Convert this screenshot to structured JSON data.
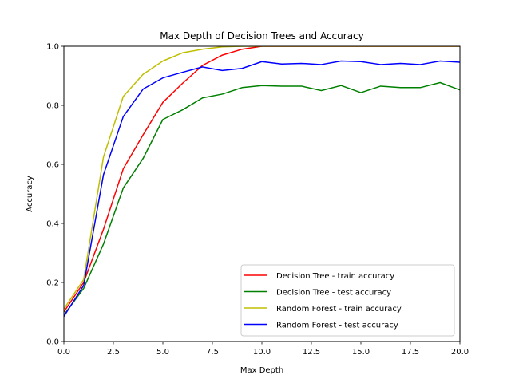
{
  "chart_data": {
    "type": "line",
    "title": "Max Depth of Decision Trees and Accuracy",
    "xlabel": "Max Depth",
    "ylabel": "Accuracy",
    "xlim": [
      0,
      20
    ],
    "ylim": [
      0,
      1
    ],
    "xticks": [
      "0.0",
      "2.5",
      "5.0",
      "7.5",
      "10.0",
      "12.5",
      "15.0",
      "17.5",
      "20.0"
    ],
    "yticks": [
      "0.0",
      "0.2",
      "0.4",
      "0.6",
      "0.8",
      "1.0"
    ],
    "grid": false,
    "legend_position": "lower-right",
    "x": [
      0,
      1,
      2,
      3,
      4,
      5,
      6,
      7,
      8,
      9,
      10,
      11,
      12,
      13,
      14,
      15,
      16,
      17,
      18,
      19,
      20
    ],
    "series": [
      {
        "name": "Decision Tree - train accuracy",
        "color": "#ff0000",
        "values": [
          0.1,
          0.2,
          0.38,
          0.585,
          0.7,
          0.81,
          0.875,
          0.935,
          0.97,
          0.99,
          1.0,
          1.0,
          1.0,
          1.0,
          1.0,
          1.0,
          1.0,
          1.0,
          1.0,
          1.0,
          1.0
        ]
      },
      {
        "name": "Decision Tree - test accuracy",
        "color": "#008000",
        "values": [
          0.09,
          0.18,
          0.33,
          0.52,
          0.62,
          0.752,
          0.785,
          0.825,
          0.838,
          0.86,
          0.867,
          0.865,
          0.865,
          0.85,
          0.867,
          0.843,
          0.865,
          0.86,
          0.86,
          0.877,
          0.852
        ]
      },
      {
        "name": "Random Forest - train accuracy",
        "color": "#bfbf00",
        "values": [
          0.11,
          0.21,
          0.625,
          0.83,
          0.905,
          0.95,
          0.978,
          0.99,
          0.998,
          1.0,
          1.0,
          1.0,
          1.0,
          1.0,
          1.0,
          1.0,
          1.0,
          1.0,
          1.0,
          1.0,
          1.0
        ]
      },
      {
        "name": "Random Forest - test accuracy",
        "color": "#0000ff",
        "values": [
          0.085,
          0.19,
          0.565,
          0.762,
          0.855,
          0.893,
          0.912,
          0.93,
          0.918,
          0.925,
          0.948,
          0.94,
          0.942,
          0.938,
          0.95,
          0.948,
          0.938,
          0.942,
          0.938,
          0.95,
          0.946
        ]
      }
    ]
  }
}
